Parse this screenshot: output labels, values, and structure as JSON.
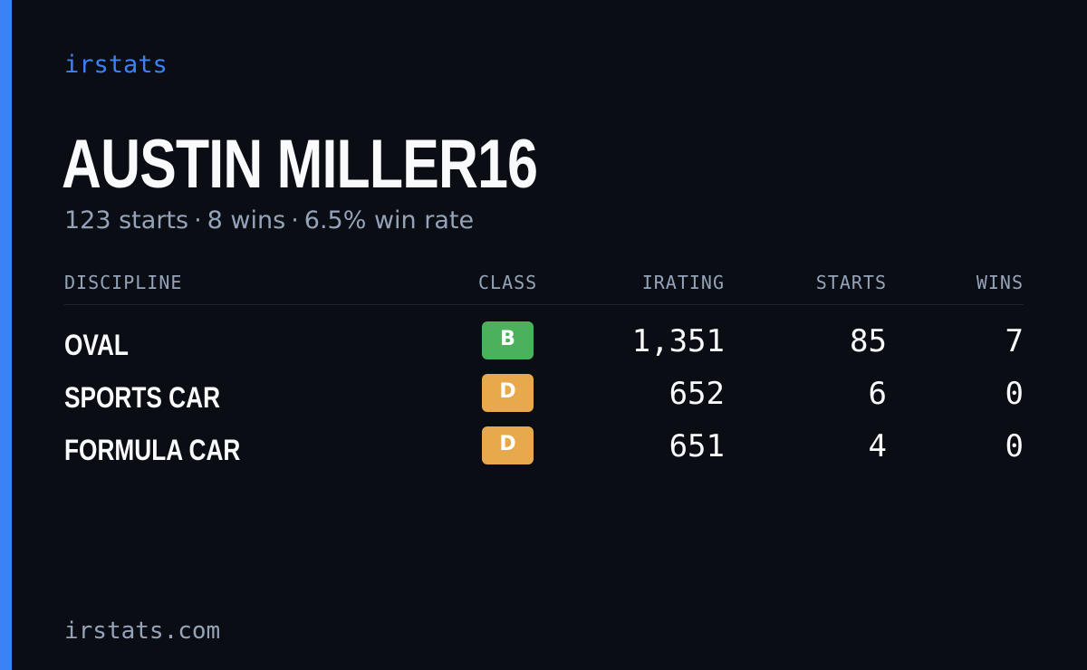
{
  "brand": "irstats",
  "driver_name": "AUSTIN MILLER16",
  "summary": {
    "starts": "123 starts",
    "wins": "8 wins",
    "win_rate": "6.5% win rate",
    "separator": "·"
  },
  "table": {
    "headers": {
      "discipline": "DISCIPLINE",
      "class": "CLASS",
      "irating": "IRATING",
      "starts": "STARTS",
      "wins": "WINS"
    },
    "rows": [
      {
        "discipline": "OVAL",
        "class": "B",
        "class_color": "#4cb15c",
        "irating": "1,351",
        "starts": "85",
        "wins": "7"
      },
      {
        "discipline": "SPORTS CAR",
        "class": "D",
        "class_color": "#e8a94c",
        "irating": "652",
        "starts": "6",
        "wins": "0"
      },
      {
        "discipline": "FORMULA CAR",
        "class": "D",
        "class_color": "#e8a94c",
        "irating": "651",
        "starts": "4",
        "wins": "0"
      }
    ]
  },
  "footer": "irstats.com",
  "colors": {
    "background": "#0a0d14",
    "accent": "#3b82f6",
    "text_primary": "#f8fafc",
    "text_muted": "#94a3b8"
  }
}
